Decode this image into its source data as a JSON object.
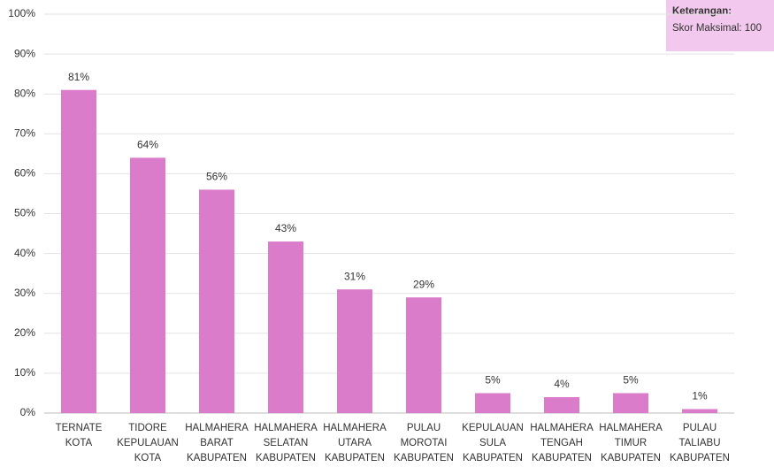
{
  "chart_data": {
    "type": "bar",
    "categories": [
      [
        "TERNATE",
        "KOTA"
      ],
      [
        "TIDORE",
        "KEPULAUAN",
        "KOTA"
      ],
      [
        "HALMAHERA",
        "BARAT",
        "KABUPATEN"
      ],
      [
        "HALMAHERA",
        "SELATAN",
        "KABUPATEN"
      ],
      [
        "HALMAHERA",
        "UTARA",
        "KABUPATEN"
      ],
      [
        "PULAU",
        "MOROTAI",
        "KABUPATEN"
      ],
      [
        "KEPULAUAN",
        "SULA",
        "KABUPATEN"
      ],
      [
        "HALMAHERA",
        "TENGAH",
        "KABUPATEN"
      ],
      [
        "HALMAHERA",
        "TIMUR",
        "KABUPATEN"
      ],
      [
        "PULAU",
        "TALIABU",
        "KABUPATEN"
      ]
    ],
    "values": [
      81,
      64,
      56,
      43,
      31,
      29,
      5,
      4,
      5,
      1
    ],
    "value_labels": [
      "81%",
      "64%",
      "56%",
      "43%",
      "31%",
      "29%",
      "5%",
      "4%",
      "5%",
      "1%"
    ],
    "color": "#da7cc9",
    "ylim": [
      0,
      100
    ],
    "yticks": [
      {
        "value": 0,
        "label": "0%"
      },
      {
        "value": 10,
        "label": "10%"
      },
      {
        "value": 20,
        "label": "20%"
      },
      {
        "value": 30,
        "label": "30%"
      },
      {
        "value": 40,
        "label": "40%"
      },
      {
        "value": 50,
        "label": "50%"
      },
      {
        "value": 60,
        "label": "60%"
      },
      {
        "value": 70,
        "label": "70%"
      },
      {
        "value": 80,
        "label": "80%"
      },
      {
        "value": 90,
        "label": "90%"
      },
      {
        "value": 100,
        "label": "100%"
      }
    ],
    "grid": true,
    "annotation": {
      "title": "Keterangan:",
      "text": "Skor Maksimal: 100"
    }
  }
}
